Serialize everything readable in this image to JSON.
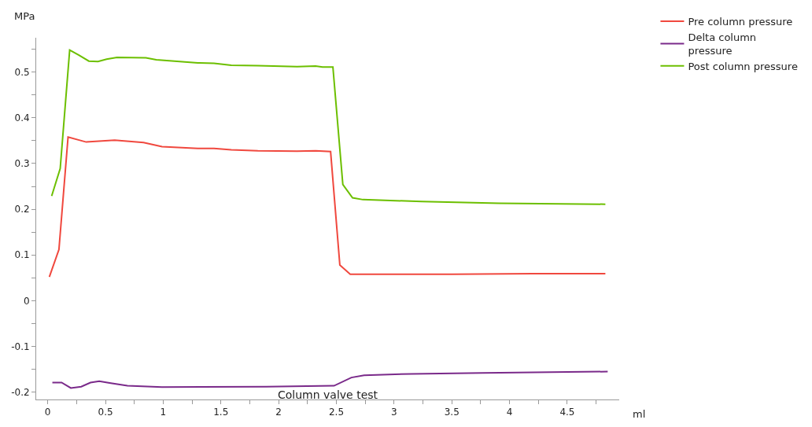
{
  "chart_data": {
    "type": "line",
    "xlabel": "ml",
    "ylabel": "MPa",
    "annotations": [
      "Column valve test"
    ],
    "xlim": [
      -0.1,
      4.95
    ],
    "ylim": [
      -0.216,
      0.575
    ],
    "xticks": [
      0,
      {
        "value": 0.25,
        "label": null
      },
      0.5,
      {
        "value": 0.75,
        "label": null
      },
      1,
      {
        "value": 1.25,
        "label": null
      },
      1.5,
      {
        "value": 1.75,
        "label": null
      },
      2,
      {
        "value": 2.25,
        "label": null
      },
      2.5,
      {
        "value": 2.75,
        "label": null
      },
      3,
      {
        "value": 3.25,
        "label": null
      },
      3.5,
      {
        "value": 3.75,
        "label": null
      },
      4,
      {
        "value": 4.25,
        "label": null
      },
      4.5,
      {
        "value": 4.75,
        "label": null
      }
    ],
    "yticks": [
      -0.2,
      {
        "value": -0.15,
        "label": null
      },
      -0.1,
      {
        "value": -0.05,
        "label": null
      },
      0,
      {
        "value": 0.05,
        "label": null
      },
      0.1,
      {
        "value": 0.15,
        "label": null
      },
      0.2,
      {
        "value": 0.25,
        "label": null
      },
      0.3,
      {
        "value": 0.35,
        "label": null
      },
      0.4,
      {
        "value": 0.45,
        "label": null
      },
      0.5,
      {
        "value": 0.55,
        "label": null
      }
    ],
    "legend": "top right",
    "marker": "none",
    "line_style": "solid",
    "series": [
      {
        "name": "Pre column pressure",
        "color": "#f0483e",
        "x": [
          0.014,
          0.097,
          0.176,
          0.333,
          0.58,
          0.83,
          0.99,
          1.3,
          1.44,
          1.59,
          1.82,
          2.16,
          2.32,
          2.45,
          2.53,
          2.62,
          3.5,
          4.2,
          4.83
        ],
        "values": [
          0.052,
          0.112,
          0.358,
          0.347,
          0.351,
          0.346,
          0.337,
          0.333,
          0.333,
          0.33,
          0.328,
          0.327,
          0.328,
          0.326,
          0.078,
          0.058,
          0.058,
          0.059,
          0.059
        ]
      },
      {
        "name": "Delta column pressure",
        "color": "#7a2a8a",
        "x": [
          0.04,
          0.12,
          0.2,
          0.29,
          0.37,
          0.446,
          0.536,
          0.69,
          0.99,
          1.89,
          2.48,
          2.63,
          2.74,
          3.15,
          3.77,
          4.85
        ],
        "values": [
          -0.179,
          -0.179,
          -0.191,
          -0.188,
          -0.179,
          -0.176,
          -0.18,
          -0.186,
          -0.189,
          -0.188,
          -0.186,
          -0.168,
          -0.163,
          -0.16,
          -0.158,
          -0.155
        ]
      },
      {
        "name": "Post column pressure",
        "color": "#6cbf00",
        "x": [
          0.034,
          0.108,
          0.19,
          0.27,
          0.356,
          0.435,
          0.51,
          0.6,
          0.85,
          0.94,
          1.3,
          1.44,
          1.59,
          1.82,
          2.16,
          2.32,
          2.38,
          2.47,
          2.556,
          2.64,
          2.73,
          3.24,
          3.91,
          4.83
        ],
        "values": [
          0.229,
          0.289,
          0.548,
          0.537,
          0.524,
          0.523,
          0.528,
          0.532,
          0.531,
          0.527,
          0.52,
          0.519,
          0.515,
          0.514,
          0.512,
          0.513,
          0.511,
          0.511,
          0.254,
          0.225,
          0.221,
          0.217,
          0.213,
          0.211
        ]
      }
    ]
  }
}
